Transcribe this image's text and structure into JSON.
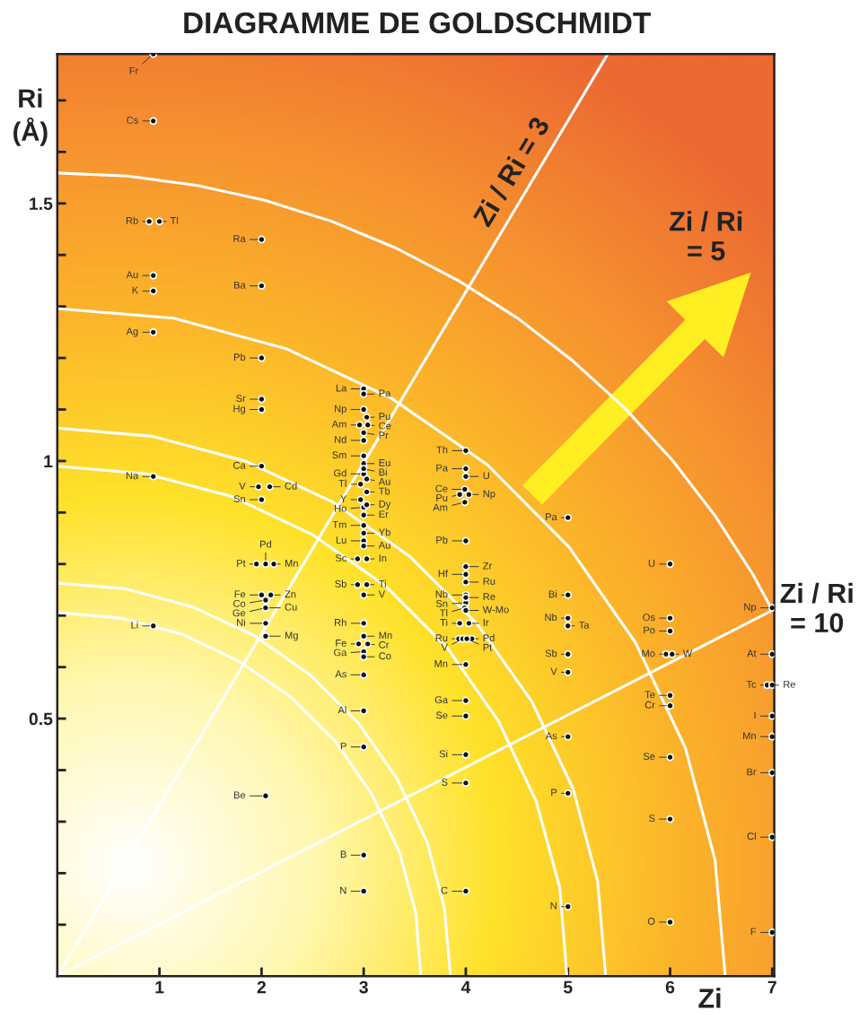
{
  "chart_data": {
    "type": "scatter",
    "title": "DIAGRAMME DE GOLDSCHMIDT",
    "xlabel": "Zi",
    "ylabel": "Ri (Å)",
    "xlim": [
      0,
      7.02
    ],
    "ylim": [
      0,
      1.79
    ],
    "xticks": [
      1,
      2,
      3,
      4,
      5,
      6,
      7
    ],
    "yticks": [
      {
        "value": 0.1,
        "label": null
      },
      {
        "value": 0.2,
        "label": null
      },
      {
        "value": 0.3,
        "label": null
      },
      {
        "value": 0.4,
        "label": null
      },
      0.5,
      {
        "value": 0.6,
        "label": null
      },
      {
        "value": 0.7,
        "label": null
      },
      {
        "value": 0.8,
        "label": null
      },
      {
        "value": 0.9,
        "label": null
      },
      1,
      {
        "value": 1.1,
        "label": null
      },
      {
        "value": 1.2,
        "label": null
      },
      {
        "value": 1.3,
        "label": null
      },
      {
        "value": 1.4,
        "label": null
      },
      1.5,
      {
        "value": 1.6,
        "label": null
      },
      {
        "value": 1.7,
        "label": null
      }
    ],
    "marker": "circle",
    "annotations": [
      "Zi / Ri\n= 5"
    ],
    "series": [
      {
        "type": "line",
        "color": "#ffffff",
        "marker": "none",
        "x": [
          3.56,
          3.51,
          3.35,
          3.08,
          2.73,
          2.29,
          1.78,
          1.22,
          0.62,
          0
        ],
        "values": [
          0,
          0.123,
          0.241,
          0.353,
          0.454,
          0.541,
          0.611,
          0.664,
          0.695,
          0.706
        ]
      },
      {
        "type": "line",
        "color": "#ffffff",
        "marker": "none",
        "x": [
          3.85,
          3.79,
          3.62,
          3.33,
          2.95,
          2.48,
          1.93,
          1.32,
          0.67,
          0
        ],
        "values": [
          0,
          0.133,
          0.261,
          0.382,
          0.491,
          0.584,
          0.661,
          0.717,
          0.752,
          0.763
        ]
      },
      {
        "type": "line",
        "color": "#ffffff",
        "marker": "none",
        "x": [
          4.99,
          4.92,
          4.69,
          4.32,
          3.82,
          3.21,
          2.5,
          1.71,
          0.87,
          0
        ],
        "values": [
          0,
          0.172,
          0.339,
          0.495,
          0.637,
          0.758,
          0.857,
          0.931,
          0.975,
          0.99
        ]
      },
      {
        "type": "line",
        "color": "#ffffff",
        "marker": "none",
        "x": [
          5.37,
          5.29,
          5.05,
          4.65,
          4.11,
          3.45,
          2.69,
          1.84,
          0.93,
          0
        ],
        "values": [
          0,
          0.185,
          0.364,
          0.532,
          0.684,
          0.815,
          0.921,
          1.0,
          1.048,
          1.064
        ]
      },
      {
        "type": "line",
        "color": "#ffffff",
        "marker": "none",
        "x": [
          6.54,
          6.44,
          6.15,
          5.66,
          5.01,
          4.21,
          3.27,
          2.24,
          1.14,
          0
        ],
        "values": [
          0,
          0.226,
          0.443,
          0.648,
          0.833,
          0.993,
          1.122,
          1.218,
          1.277,
          1.296
        ]
      },
      {
        "type": "line",
        "color": "#ffffff",
        "marker": "none",
        "x": [
          7.0,
          6.81,
          6.44,
          6.02,
          5.56,
          5.05,
          4.51,
          3.93,
          3.32,
          2.69,
          2.03,
          1.37,
          0.69,
          0
        ],
        "values": [
          0.711,
          0.78,
          0.894,
          1.002,
          1.102,
          1.194,
          1.277,
          1.35,
          1.413,
          1.465,
          1.506,
          1.535,
          1.553,
          1.559
        ]
      },
      {
        "type": "line",
        "name": "Zi / Ri = 3",
        "color": "#ffffff",
        "marker": "none",
        "x": [
          0,
          5.39
        ],
        "values": [
          0,
          1.79
        ]
      },
      {
        "type": "line",
        "name": "Zi / Ri\n= 10",
        "color": "#ffffff",
        "marker": "none",
        "x": [
          0,
          7.0
        ],
        "values": [
          0,
          0.71
        ]
      },
      {
        "type": "scatter",
        "color": "#111111",
        "x": [
          0.94,
          0.94,
          0.9,
          0.94,
          0.94,
          0.94,
          0.94,
          0.94,
          2.0,
          2.0,
          2.0,
          2.0,
          2.0,
          2.0,
          1.97,
          2.0,
          1.95,
          2.0,
          2.04,
          2.04,
          2.04,
          2.04,
          3.0,
          3.0,
          2.96,
          3.0,
          3.0,
          3.0,
          2.97,
          2.97,
          3.0,
          3.0,
          3.0,
          2.94,
          2.94,
          3.0,
          2.95,
          3.0,
          3.0,
          3.0,
          3.0,
          3.0,
          3.0,
          4.0,
          4.0,
          3.99,
          3.94,
          3.99,
          4.0,
          4.0,
          4.0,
          4.0,
          3.99,
          3.94,
          3.93,
          3.97,
          4.0,
          4.0,
          4.0,
          4.0,
          4.0,
          4.0,
          5.0,
          5.0,
          5.0,
          5.0,
          5.0,
          5.0,
          5.0,
          5.0,
          6.0,
          6.0,
          6.0,
          5.96,
          6.0,
          6.0,
          6.0,
          6.0,
          6.0,
          7.0,
          7.0,
          6.95,
          7.0,
          7.0,
          7.0,
          7.0,
          7.0
        ],
        "values": [
          1.79,
          1.66,
          1.465,
          1.36,
          1.33,
          1.25,
          0.97,
          0.68,
          1.43,
          1.34,
          1.2,
          1.12,
          1.1,
          0.99,
          0.95,
          0.925,
          0.8,
          0.74,
          0.73,
          0.715,
          0.685,
          0.35,
          1.14,
          1.1,
          1.07,
          1.04,
          1.01,
          0.975,
          0.955,
          0.925,
          0.91,
          0.875,
          0.845,
          0.81,
          0.76,
          0.685,
          0.645,
          0.63,
          0.585,
          0.515,
          0.445,
          0.235,
          0.165,
          1.02,
          0.985,
          0.945,
          0.935,
          0.92,
          0.845,
          0.78,
          0.74,
          0.725,
          0.715,
          0.685,
          0.655,
          0.655,
          0.605,
          0.535,
          0.505,
          0.43,
          0.375,
          0.165,
          0.89,
          0.74,
          0.695,
          0.625,
          0.59,
          0.465,
          0.355,
          0.135,
          0.8,
          0.695,
          0.67,
          0.625,
          0.545,
          0.525,
          0.425,
          0.305,
          0.105,
          0.715,
          0.625,
          0.565,
          0.505,
          0.465,
          0.395,
          0.27,
          0.085
        ],
        "value_labels": [
          "Fr",
          "Cs",
          "Rb",
          "Au",
          "K",
          "Ag",
          "Na",
          "Li",
          "Ra",
          "Ba",
          "Pb",
          "Sr",
          "Hg",
          "Ca",
          "V",
          "Sn",
          "Pt",
          "Fe",
          "Co",
          "Ge",
          "Ni",
          "Be",
          "La",
          "Np",
          "Am",
          "Nd",
          "Sm",
          "Gd",
          "Tl",
          "Y",
          "Ho",
          "Tm",
          "Lu",
          "Sc",
          "Sb",
          "Rh",
          "Fe",
          "Ga",
          "As",
          "Al",
          "P",
          "B",
          "N",
          "Th",
          "Pa",
          "Ce",
          "Pu",
          "Am",
          "Pb",
          "Hf",
          "Nb",
          "Sn",
          "Tl",
          "Ti",
          "Ru",
          "V",
          "Mn",
          "Ga",
          "Se",
          "Si",
          "S",
          "C",
          "Pa",
          "Bi",
          "Nb",
          "Sb",
          "V",
          "As",
          "P",
          "N",
          "U",
          "Os",
          "Po",
          "Mo",
          "Te",
          "Cr",
          "Se",
          "S",
          "O",
          "Np",
          "At",
          "Tc",
          "I",
          "Mn",
          "Br",
          "Cl",
          "F"
        ]
      },
      {
        "color": "#111111",
        "x": [
          1.0,
          2.08,
          2.12,
          2.09,
          2.04,
          2.04,
          3.0,
          3.03,
          3.04,
          3.0,
          3.0,
          3.0,
          3.03,
          3.03,
          3.03,
          3.0,
          3.0,
          3.0,
          3.03,
          3.03,
          3.0,
          3.0,
          3.04,
          3.0,
          4.0,
          4.03,
          4.0,
          4.0,
          4.0,
          4.0,
          4.03,
          4.06,
          4.01,
          5.0,
          6.02,
          7.0
        ],
        "values": [
          1.465,
          0.95,
          0.8,
          0.74,
          0.715,
          0.66,
          1.13,
          1.085,
          1.07,
          1.055,
          0.995,
          0.985,
          0.965,
          0.94,
          0.915,
          0.895,
          0.86,
          0.835,
          0.81,
          0.76,
          0.74,
          0.66,
          0.645,
          0.62,
          0.97,
          0.935,
          0.795,
          0.765,
          0.735,
          0.71,
          0.685,
          0.655,
          0.655,
          0.68,
          0.625,
          0.565
        ],
        "value_labels": [
          "Tl",
          "Cd",
          "Mn",
          "Zn",
          "Cu",
          "Mg",
          "Pa",
          "Pu",
          "Ce",
          "Pr",
          "Eu",
          "Bi",
          "Au",
          "Tb",
          "Dy",
          "Er",
          "Yb",
          "Au",
          "In",
          "Ti",
          "V",
          "Mn",
          "Cr",
          "Co",
          "U",
          "Np",
          "Zr",
          "Ru",
          "Re",
          "W-Mo",
          "Ir",
          "Pd",
          "Pt",
          "Ta",
          "W",
          "Re"
        ]
      },
      {
        "color": "#111111",
        "x": [
          2.04
        ],
        "values": [
          0.8
        ],
        "value_labels": [
          "Pd"
        ]
      }
    ]
  }
}
